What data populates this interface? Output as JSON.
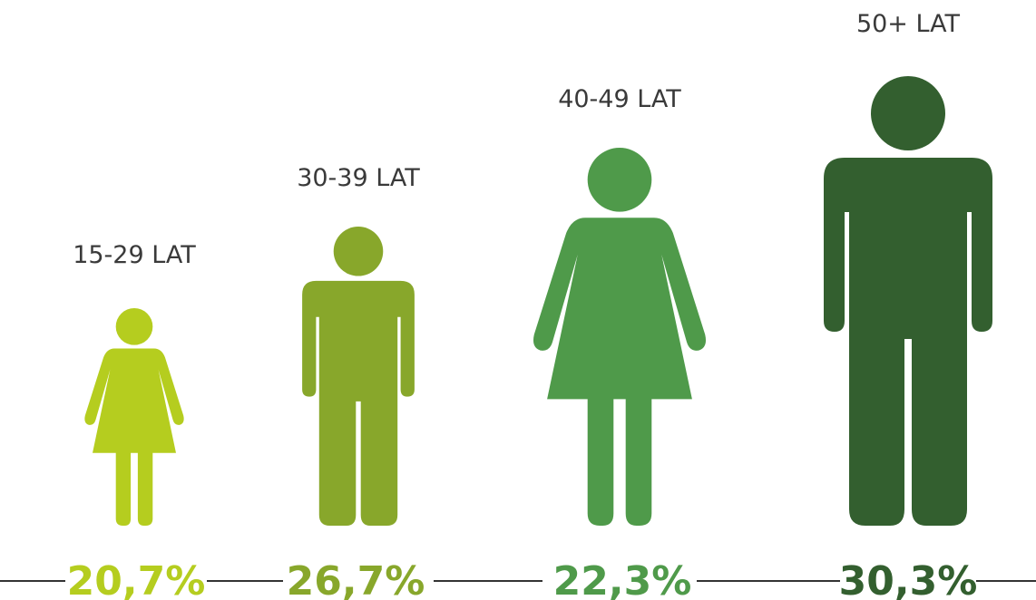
{
  "chart_data": {
    "type": "pictogram",
    "categories": [
      "15-29 LAT",
      "30-39 LAT",
      "40-49 LAT",
      "50+ LAT"
    ],
    "values": [
      20.7,
      26.7,
      22.3,
      30.3
    ],
    "value_labels": [
      "20,7%",
      "26,7%",
      "22,3%",
      "30,3%"
    ],
    "colors": [
      "#b5cd1f",
      "#88a72b",
      "#4f9a4a",
      "#335f2f"
    ],
    "icons": [
      "female",
      "male",
      "female",
      "male"
    ]
  }
}
